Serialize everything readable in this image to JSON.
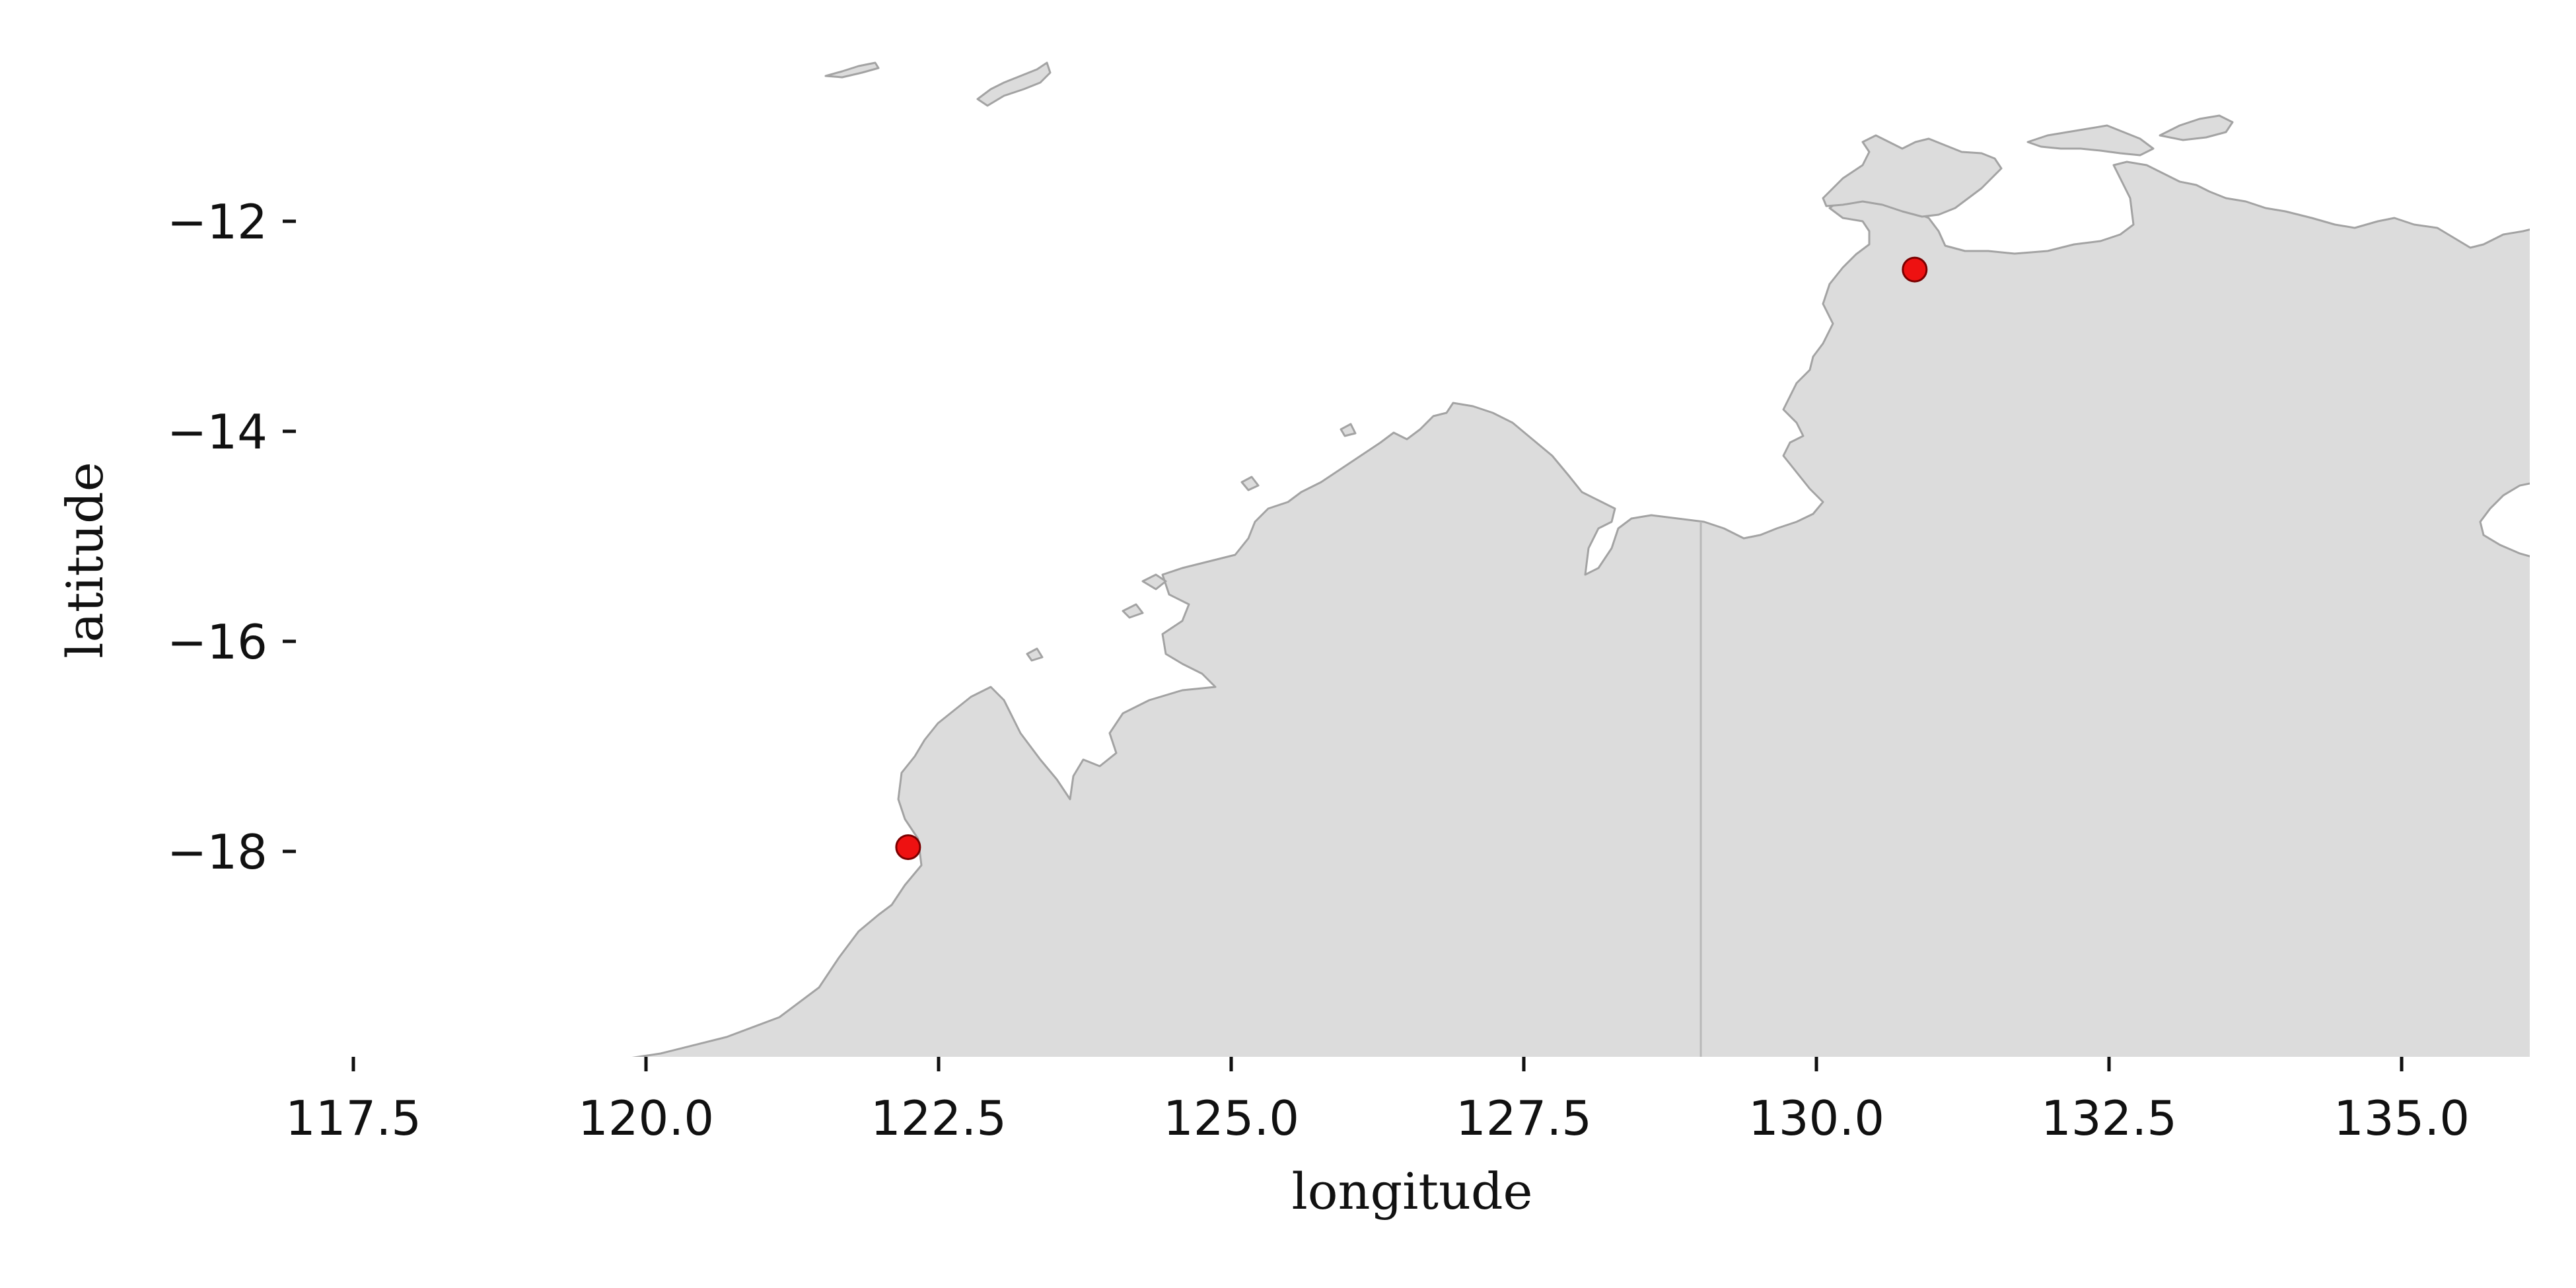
{
  "chart_data": {
    "type": "scatter",
    "xlabel": "longitude",
    "ylabel": "latitude",
    "xlim": [
      117.0,
      136.0
    ],
    "ylim": [
      -19.95,
      -10.45
    ],
    "x_ticks": [
      "117.5",
      "120.0",
      "122.5",
      "125.0",
      "127.5",
      "130.0",
      "132.5",
      "135.0"
    ],
    "y_ticks": [
      "−12",
      "−14",
      "−16",
      "−18"
    ],
    "x_tick_values": [
      117.5,
      120.0,
      122.5,
      125.0,
      127.5,
      130.0,
      132.5,
      135.0
    ],
    "y_tick_values": [
      -12,
      -14,
      -16,
      -18
    ],
    "points": [
      {
        "x": 122.24,
        "y": -17.96
      },
      {
        "x": 130.84,
        "y": -12.46
      }
    ],
    "point_color": "#ee1111",
    "land_color": "#dcdcdc",
    "coastline_color": "#a3a3a3",
    "grid": false,
    "frame": false
  }
}
